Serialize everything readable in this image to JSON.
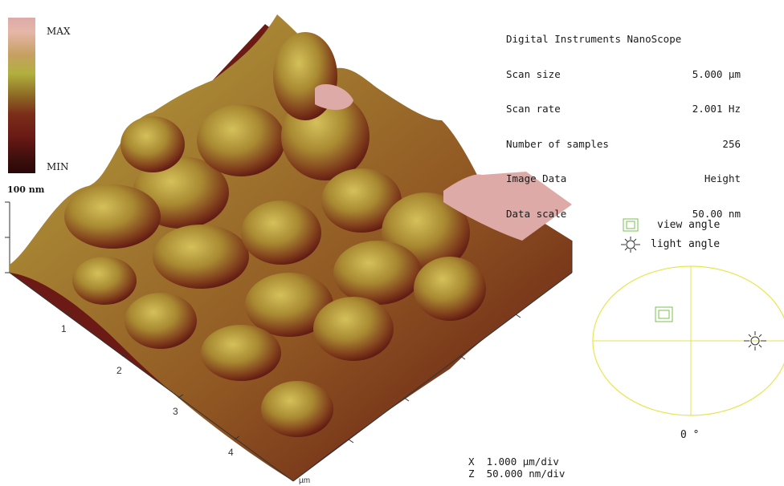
{
  "scale_bar": {
    "max_label": "MAX",
    "min_label": "MIN",
    "height_label": "100 nm"
  },
  "info": {
    "title": "Digital Instruments NanoScope",
    "rows": [
      {
        "key": "Scan size",
        "value": "5.000 µm"
      },
      {
        "key": "Scan rate",
        "value": "2.001 Hz"
      },
      {
        "key": "Number of samples",
        "value": "256"
      },
      {
        "key": "Image Data",
        "value": "Height"
      },
      {
        "key": "Data scale",
        "value": "50.00 nm"
      }
    ]
  },
  "legend": {
    "view_angle": "view angle",
    "light_angle": "light angle",
    "angle_value": "0 °"
  },
  "axis": {
    "ticks": [
      "1",
      "2",
      "3",
      "4"
    ],
    "unit": "µm"
  },
  "footer": {
    "x_prefix": "X",
    "x_scale": "1.000 µm/div",
    "z_prefix": "Z",
    "z_scale": "50.000 nm/div"
  },
  "colors": {
    "peak_pink": "#ddaaa7",
    "ridge_gold": "#b2a93f",
    "valley_brown": "#6b1a15",
    "ellipse_yellow": "#e6e64e",
    "view_icon_green": "#7bbf52"
  }
}
